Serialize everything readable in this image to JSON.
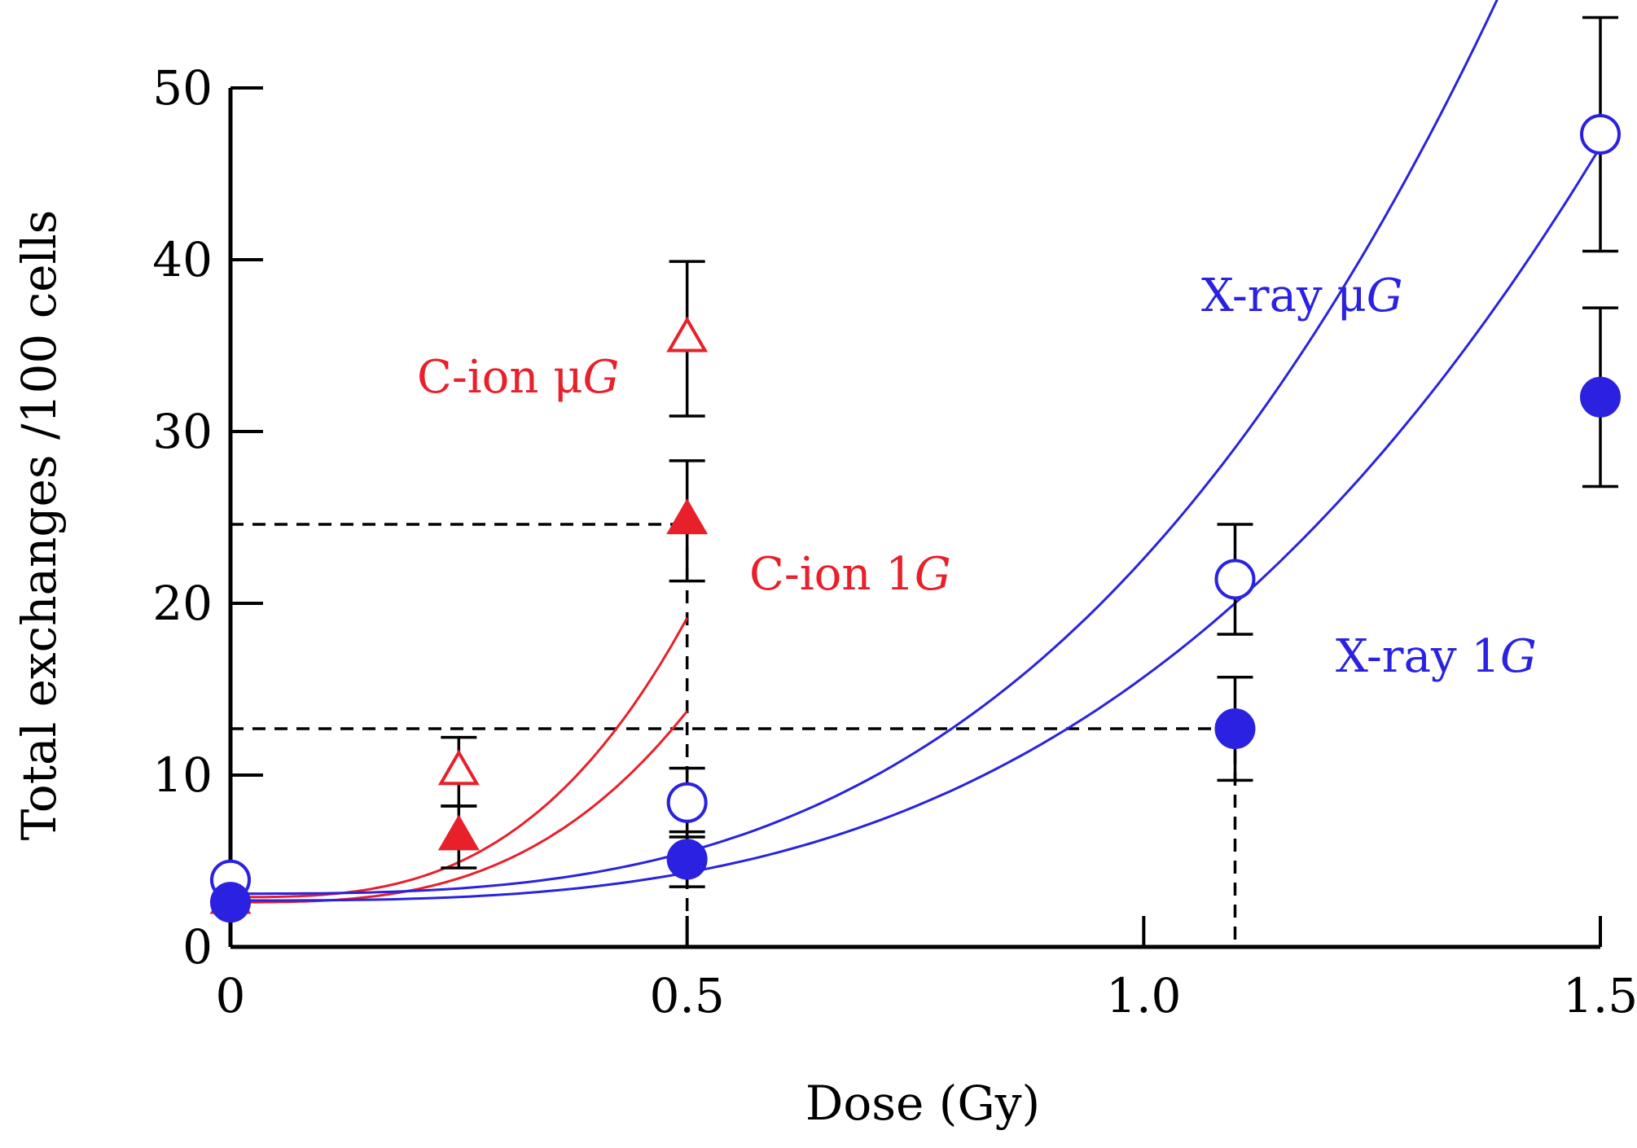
{
  "chart_data": {
    "type": "scatter",
    "title": "",
    "xlabel": "Dose (Gy)",
    "ylabel": "Total exchanges /100 cells",
    "xlim": [
      0,
      1.5
    ],
    "ylim": [
      0,
      50
    ],
    "x_ticks": [
      0,
      0.5,
      1.0,
      1.5
    ],
    "x_tick_labels": [
      "0",
      "0.5",
      "1.0",
      "1.5"
    ],
    "y_ticks": [
      0,
      10,
      20,
      30,
      40,
      50
    ],
    "y_tick_labels": [
      "0",
      "10",
      "20",
      "30",
      "40",
      "50"
    ],
    "grid": false,
    "legend": "inline labels",
    "series": [
      {
        "name": "C-ion μG",
        "label_parts": [
          "C-ion ",
          "μ",
          "G"
        ],
        "color": "#e8202a",
        "marker": "triangle-open",
        "points": [
          {
            "x": 0,
            "y": 3.4,
            "err": 0
          },
          {
            "x": 0.25,
            "y": 10.2,
            "err": 2.0
          },
          {
            "x": 0.5,
            "y": 35.4,
            "err": 4.5
          }
        ],
        "fit": {
          "a": 2.9,
          "b": 0.0,
          "c": 130.0
        }
      },
      {
        "name": "C-ion 1G",
        "label_parts": [
          "C-ion 1",
          "",
          "G"
        ],
        "color": "#e8202a",
        "marker": "triangle-filled",
        "points": [
          {
            "x": 0,
            "y": 2.7,
            "err": 0
          },
          {
            "x": 0.25,
            "y": 6.4,
            "err": 1.8
          },
          {
            "x": 0.5,
            "y": 24.8,
            "err": 3.5
          }
        ],
        "fit": {
          "a": 2.6,
          "b": 0.0,
          "c": 89.0
        }
      },
      {
        "name": "X-ray μG",
        "label_parts": [
          "X-ray ",
          "μ",
          "G"
        ],
        "color": "#2a22e0",
        "marker": "circle-open",
        "points": [
          {
            "x": 0,
            "y": 3.9,
            "err": 0
          },
          {
            "x": 0.5,
            "y": 8.4,
            "err": 2.0
          },
          {
            "x": 1.1,
            "y": 21.4,
            "err": 3.2
          },
          {
            "x": 1.5,
            "y": 47.3,
            "err": 6.8
          }
        ],
        "fit": {
          "a": 3.1,
          "b": 0.0,
          "c": 19.5
        }
      },
      {
        "name": "X-ray 1G",
        "label_parts": [
          "X-ray 1",
          "",
          "G"
        ],
        "color": "#2a22e0",
        "marker": "circle-filled",
        "points": [
          {
            "x": 0,
            "y": 2.6,
            "err": 0
          },
          {
            "x": 0.5,
            "y": 5.1,
            "err": 1.6
          },
          {
            "x": 1.1,
            "y": 12.7,
            "err": 3.0
          },
          {
            "x": 1.5,
            "y": 32.0,
            "err": 5.2
          }
        ],
        "fit": {
          "a": 2.7,
          "b": 0.0,
          "c": 13.0
        }
      }
    ],
    "reference_lines": [
      {
        "y": 24.6,
        "x_end": 0.5
      },
      {
        "y": 12.7,
        "x_end": 1.1
      }
    ]
  }
}
